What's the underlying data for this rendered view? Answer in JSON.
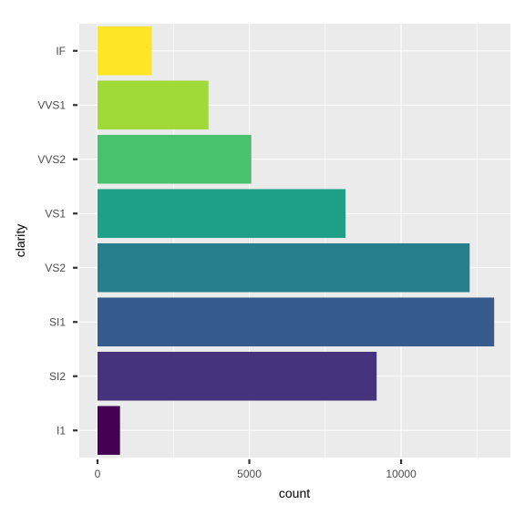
{
  "chart_data": {
    "type": "bar",
    "orientation": "horizontal",
    "categories": [
      "I1",
      "SI2",
      "SI1",
      "VS2",
      "VS1",
      "VVS2",
      "VVS1",
      "IF"
    ],
    "values": [
      741,
      9194,
      13065,
      12258,
      8171,
      5066,
      3655,
      1790
    ],
    "colors": [
      "#440154",
      "#46337E",
      "#365C8D",
      "#277F8E",
      "#1FA187",
      "#4AC16D",
      "#A0DA39",
      "#FDE725"
    ],
    "xlabel": "count",
    "ylabel": "clarity",
    "xlim": [
      -600,
      13600
    ],
    "xticks": [
      0,
      5000,
      10000
    ],
    "xtick_labels": [
      "0",
      "5000",
      "10000"
    ],
    "x_minor_gridlines": [
      2500,
      7500,
      12500
    ],
    "grid": true,
    "legend": "none",
    "panel_background": "#EBEBEB",
    "grid_color": "#FFFFFF"
  }
}
